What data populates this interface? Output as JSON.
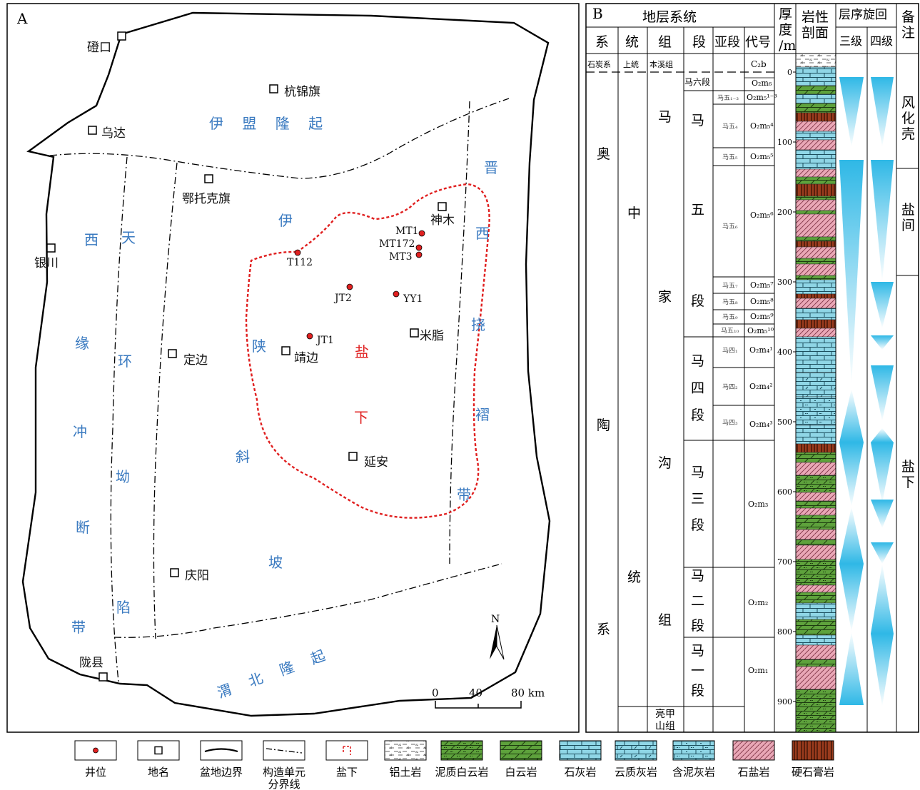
{
  "panel_a": {
    "label": "A",
    "regions": [
      {
        "id": "yimeng",
        "text": "伊 盟 隆 起"
      },
      {
        "id": "weibei",
        "text": "渭 北 隆 起"
      },
      {
        "id": "jin1",
        "text": "晋"
      },
      {
        "id": "jin2",
        "text": "西"
      },
      {
        "id": "jin3",
        "text": "挠"
      },
      {
        "id": "jin4",
        "text": "褶"
      },
      {
        "id": "jin5",
        "text": "带"
      },
      {
        "id": "tian1",
        "text": "天"
      },
      {
        "id": "tian2",
        "text": "环"
      },
      {
        "id": "tian3",
        "text": "坳"
      },
      {
        "id": "tian4",
        "text": "陷"
      },
      {
        "id": "xi1",
        "text": "西"
      },
      {
        "id": "xi2",
        "text": "缘"
      },
      {
        "id": "xi3",
        "text": "冲"
      },
      {
        "id": "xi4",
        "text": "断"
      },
      {
        "id": "xi5",
        "text": "带"
      },
      {
        "id": "yi1",
        "text": "伊"
      },
      {
        "id": "yi2",
        "text": "陕"
      },
      {
        "id": "yi3",
        "text": "斜"
      },
      {
        "id": "yi4",
        "text": "坡"
      },
      {
        "id": "yan1",
        "text": "盐"
      },
      {
        "id": "yan2",
        "text": "下"
      }
    ],
    "places": [
      "磴口",
      "杭锦旗",
      "乌达",
      "鄂托克旗",
      "银川",
      "神木",
      "米脂",
      "定边",
      "靖边",
      "延安",
      "庆阳",
      "陇县"
    ],
    "wells": [
      "MT1",
      "MT172",
      "MT3",
      "T112",
      "JT2",
      "YY1",
      "JT1"
    ],
    "north": "N",
    "scale": {
      "ticks": [
        "0",
        "40",
        "80 km"
      ]
    }
  },
  "panel_b": {
    "label": "B",
    "header_group": "地层系统",
    "headers": {
      "system": "系",
      "series": "统",
      "formation": "组",
      "member": "段",
      "submember": "亚段",
      "code": "代号",
      "thickness": "厚度/m",
      "lithology": "岩性剖面",
      "sequence": "层序旋回",
      "third": "三级",
      "fourth": "四级",
      "remark": "备注"
    },
    "carboniferous": [
      "石炭系",
      "上统",
      "本溪组",
      "C₂b"
    ],
    "system_chars": [
      "奥",
      "陶",
      "系"
    ],
    "series_chars": [
      "中",
      "统"
    ],
    "formation_chars": [
      "马",
      "家",
      "沟",
      "组"
    ],
    "liangjia": "亮甲山组",
    "members": [
      {
        "name": "马六段",
        "code": "O₂m₆"
      },
      {
        "name": "马五段",
        "chars": [
          "马",
          "五",
          "段"
        ]
      },
      {
        "name": "马四段",
        "chars": [
          "马",
          "四",
          "段"
        ],
        "subs": [
          "马四₁",
          "马四₂",
          "马四₃"
        ],
        "codes": [
          "O₂m₄¹",
          "O₂m₄²",
          "O₂m₄³"
        ]
      },
      {
        "name": "马三段",
        "chars": [
          "马",
          "三",
          "段"
        ],
        "code": "O₂m₃"
      },
      {
        "name": "马二段",
        "chars": [
          "马",
          "二",
          "段"
        ],
        "code": "O₂m₂"
      },
      {
        "name": "马一段",
        "chars": [
          "马",
          "一",
          "段"
        ],
        "code": "O₂m₁"
      }
    ],
    "ma5_subs": [
      "马五₁₋₃",
      "马五₄",
      "马五₅",
      "马五₆",
      "马五₇",
      "马五₈",
      "马五₉",
      "马五₁₀"
    ],
    "ma5_codes": [
      "O₂m₅¹⁻³",
      "O₂m₅⁴",
      "O₂m₅⁵",
      "O₂m₅⁶",
      "O₂m₅⁷",
      "O₂m₅⁸",
      "O₂m₅⁹",
      "O₂m₅¹⁰"
    ],
    "depth_ticks": [
      "0",
      "100",
      "200",
      "300",
      "400",
      "500",
      "600",
      "700",
      "800",
      "900"
    ],
    "remarks": [
      {
        "chars": [
          "风",
          "化",
          "壳"
        ]
      },
      {
        "chars": [
          "盐",
          "间"
        ]
      },
      {
        "chars": [
          "盐",
          "下"
        ]
      }
    ],
    "colors": {
      "cyan": "#3ec3ea",
      "limestone": "#8fd6e6",
      "dolomite": "#5ea23c",
      "salt": "#e9a7b6",
      "anhydrite": "#9b3b1d"
    }
  },
  "legend": [
    {
      "id": "well",
      "label": "井位"
    },
    {
      "id": "place",
      "label": "地名"
    },
    {
      "id": "boundary",
      "label": "盆地边界"
    },
    {
      "id": "tectonic",
      "label": "构造单元",
      "label2": "分界线"
    },
    {
      "id": "yanxia",
      "label": "盐下"
    },
    {
      "id": "bauxite",
      "label": "铝土岩"
    },
    {
      "id": "marl-dolo",
      "label": "泥质白云岩"
    },
    {
      "id": "dolo",
      "label": "白云岩"
    },
    {
      "id": "lime",
      "label": "石灰岩"
    },
    {
      "id": "dolo-lime",
      "label": "云质灰岩"
    },
    {
      "id": "marl-lime",
      "label": "含泥灰岩"
    },
    {
      "id": "salt",
      "label": "石盐岩"
    },
    {
      "id": "anhydrite",
      "label": "硬石膏岩"
    }
  ]
}
